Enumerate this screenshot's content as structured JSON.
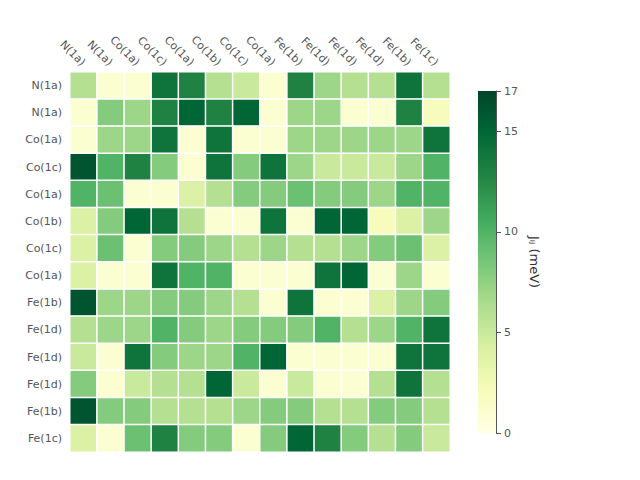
{
  "chart_data": {
    "type": "heatmap",
    "categories": [
      "N(1a)",
      "N(1a)",
      "Co(1a)",
      "Co(1c)",
      "Co(1a)",
      "Co(1b)",
      "Co(1c)",
      "Co(1a)",
      "Fe(1b)",
      "Fe(1d)",
      "Fe(1d)",
      "Fe(1d)",
      "Fe(1b)",
      "Fe(1c)"
    ],
    "y_categories": [
      "N(1a)",
      "N(1a)",
      "Co(1a)",
      "Co(1c)",
      "Co(1a)",
      "Co(1b)",
      "Co(1c)",
      "Co(1a)",
      "Fe(1b)",
      "Fe(1d)",
      "Fe(1d)",
      "Fe(1d)",
      "Fe(1b)",
      "Fe(1c)"
    ],
    "values": [
      [
        6,
        1,
        1,
        14,
        13,
        6,
        5,
        1,
        13,
        7,
        6,
        6,
        14,
        6
      ],
      [
        1,
        8,
        7,
        13,
        15,
        13,
        15,
        1,
        7,
        7,
        1,
        1,
        13,
        2
      ],
      [
        1,
        7,
        7,
        14,
        1,
        14,
        1,
        1,
        7,
        7,
        7,
        7,
        7,
        14
      ],
      [
        16,
        10,
        13,
        8,
        1,
        14,
        8,
        14,
        7,
        5,
        5,
        5,
        7,
        10
      ],
      [
        10,
        9,
        1,
        1,
        4,
        6,
        8,
        8,
        9,
        8,
        8,
        7,
        10,
        10
      ],
      [
        4,
        8,
        15,
        14,
        6,
        1,
        1,
        14,
        1,
        15,
        15,
        2,
        4,
        7
      ],
      [
        4,
        9,
        1,
        8,
        8,
        7,
        6,
        7,
        6,
        6,
        7,
        8,
        9,
        4
      ],
      [
        4,
        1,
        1,
        14,
        10,
        10,
        1,
        1,
        1,
        14,
        15,
        1,
        7,
        1
      ],
      [
        16,
        7,
        7,
        8,
        8,
        7,
        6,
        1,
        14,
        1,
        1,
        4,
        7,
        8
      ],
      [
        6,
        7,
        7,
        10,
        8,
        7,
        8,
        8,
        8,
        10,
        6,
        7,
        10,
        14
      ],
      [
        5,
        1,
        14,
        8,
        7,
        7,
        10,
        15,
        1,
        1,
        1,
        1,
        14,
        14
      ],
      [
        8,
        1,
        5,
        6,
        6,
        15,
        5,
        1,
        5,
        1,
        1,
        6,
        14,
        6
      ],
      [
        16,
        8,
        8,
        6,
        6,
        6,
        7,
        8,
        8,
        6,
        6,
        8,
        8,
        6
      ],
      [
        4,
        1,
        9,
        13,
        8,
        8,
        1,
        8,
        15,
        13,
        8,
        6,
        8,
        5
      ]
    ],
    "colorbar": {
      "label": "Jᵢⱼ (meV)",
      "range": [
        0,
        17
      ],
      "ticks": [
        0,
        5,
        10,
        15
      ]
    }
  }
}
